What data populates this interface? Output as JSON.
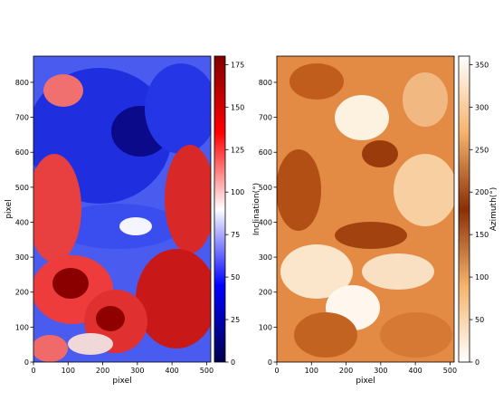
{
  "chart_data": [
    {
      "type": "heatmap",
      "xlabel": "pixel",
      "ylabel": "pixel",
      "xlim": [
        0,
        512
      ],
      "ylim": [
        0,
        875
      ],
      "xticks": [
        "0",
        "100",
        "200",
        "300",
        "400",
        "500"
      ],
      "yticks": [
        "0",
        "100",
        "200",
        "300",
        "400",
        "500",
        "600",
        "700",
        "800"
      ],
      "colorbar": {
        "label": "Inclination(°)",
        "range": [
          0,
          180
        ],
        "ticks": [
          "0",
          "25",
          "50",
          "75",
          "100",
          "125",
          "150",
          "175"
        ],
        "colormap": "seismic",
        "colors": [
          "#00004c",
          "#0000ff",
          "#ffffff",
          "#ff0000",
          "#800000"
        ]
      }
    },
    {
      "type": "heatmap",
      "xlabel": "pixel",
      "ylabel": "",
      "xlim": [
        0,
        512
      ],
      "ylim": [
        0,
        875
      ],
      "xticks": [
        "0",
        "100",
        "200",
        "300",
        "400",
        "500"
      ],
      "yticks": [
        "0",
        "100",
        "200",
        "300",
        "400",
        "500",
        "600",
        "700",
        "800"
      ],
      "colorbar": {
        "label": "Azimuth(°)",
        "range": [
          0,
          360
        ],
        "ticks": [
          "0",
          "50",
          "100",
          "150",
          "200",
          "250",
          "300",
          "350"
        ],
        "colormap": "diverging white-orange-brown",
        "colors": [
          "#ffffff",
          "#f6b36c",
          "#8a2f07",
          "#f6b36c",
          "#ffffff"
        ]
      }
    }
  ]
}
